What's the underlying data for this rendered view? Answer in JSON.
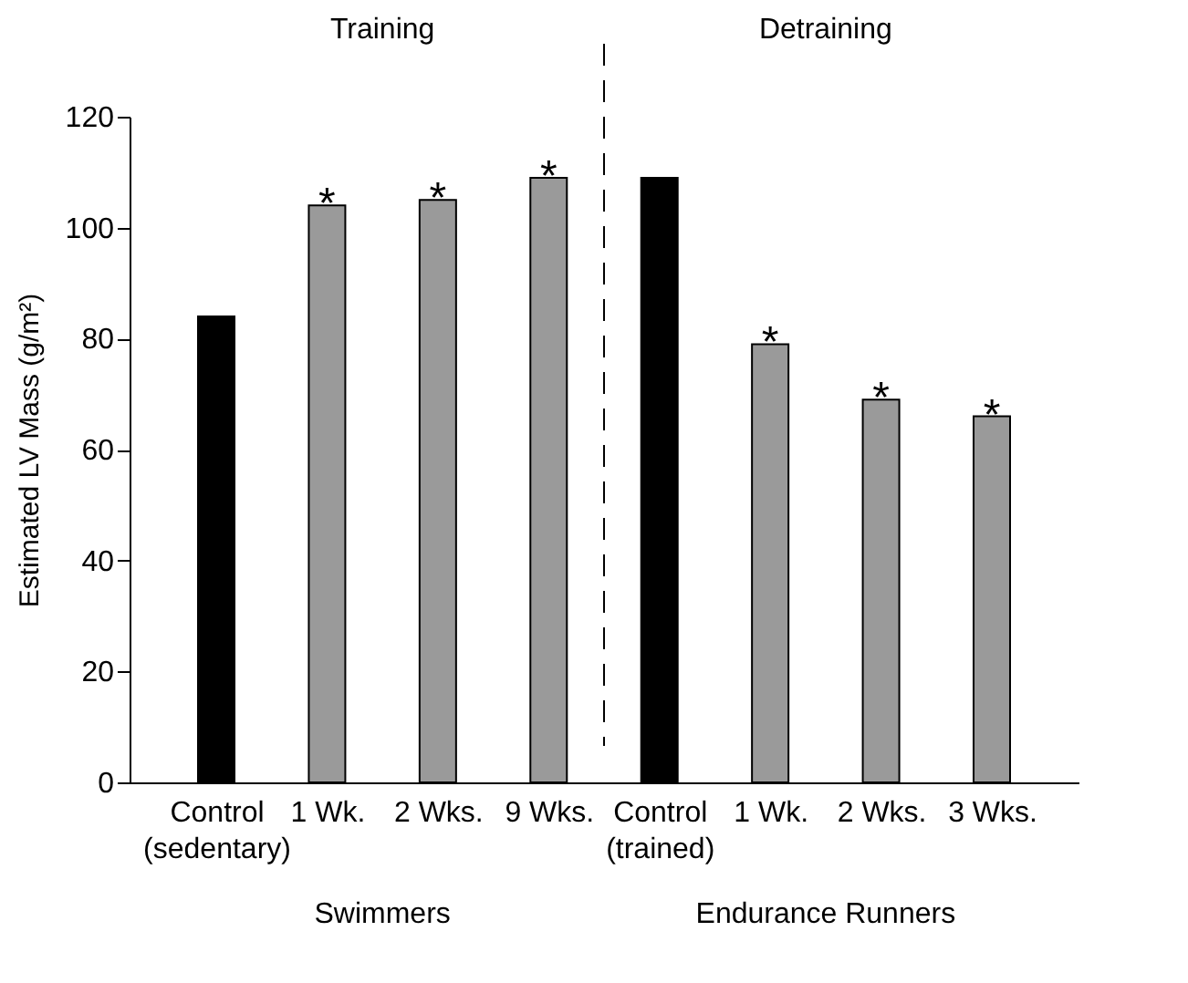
{
  "chart_data": {
    "type": "bar",
    "categories": [
      "Control\n(sedentary)",
      "1 Wk.",
      "2 Wks.",
      "9 Wks.",
      "Control\n(trained)",
      "1 Wk.",
      "2 Wks.",
      "3 Wks."
    ],
    "values": [
      84,
      104,
      105,
      109,
      109,
      79,
      69,
      66
    ],
    "colors": [
      "#000000",
      "#9a9a9a",
      "#9a9a9a",
      "#9a9a9a",
      "#000000",
      "#9a9a9a",
      "#9a9a9a",
      "#9a9a9a"
    ],
    "value_labels": [
      null,
      "*",
      "*",
      "*",
      null,
      "*",
      "*",
      "*"
    ],
    "ylabel": "Estimated LV Mass (g/m²)",
    "ylim": [
      0,
      120
    ],
    "yticks": [
      0,
      20,
      40,
      60,
      80,
      100,
      120
    ],
    "annotations": [
      "Training",
      "Detraining",
      "Swimmers",
      "Endurance Runners"
    ],
    "grid": false
  }
}
